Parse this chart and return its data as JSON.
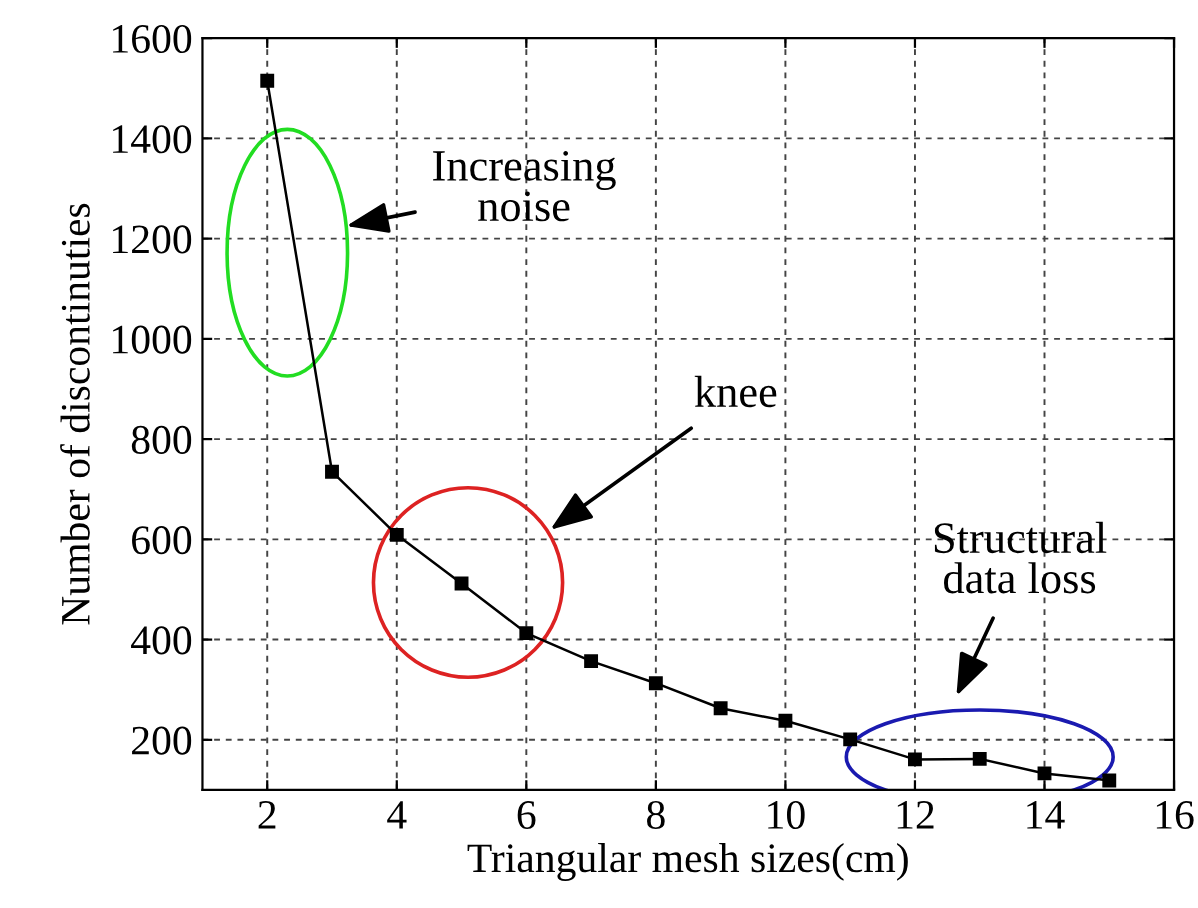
{
  "chart_data": {
    "type": "line",
    "xlabel": "Triangular mesh sizes(cm)",
    "ylabel": "Number of discontinuties",
    "x": [
      2,
      3,
      4,
      5,
      6,
      7,
      8,
      9,
      10,
      11,
      12,
      13,
      14,
      15
    ],
    "series": [
      {
        "color": "#000000",
        "values": [
          1515,
          735,
          609,
          512,
          413,
          357,
          313,
          263,
          238,
          201,
          161,
          162,
          133,
          119
        ]
      }
    ],
    "xlim": [
      1,
      16
    ],
    "xticks": [
      2,
      4,
      6,
      8,
      10,
      12,
      14,
      16
    ],
    "ylim": [
      100,
      1600
    ],
    "yticks": [
      200,
      400,
      600,
      800,
      1000,
      1200,
      1400,
      1600
    ],
    "grid": true,
    "marker": "square",
    "line_style": "solid",
    "annotations": [
      "Increasing\nnoise",
      "knee",
      "Structural\ndata loss"
    ]
  }
}
